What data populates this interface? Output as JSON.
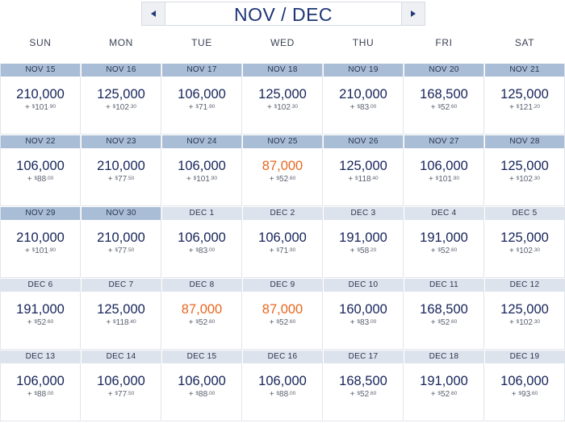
{
  "header": {
    "title": "NOV / DEC",
    "prev_icon": "triangle-left-icon",
    "next_icon": "triangle-right-icon"
  },
  "colors": {
    "primary": "#1d3574",
    "low_fare": "#e8661e",
    "nov_bar": "#a9bed6",
    "dec_bar": "#dde3ec"
  },
  "days_of_week": [
    "SUN",
    "MON",
    "TUE",
    "WED",
    "THU",
    "FRI",
    "SAT"
  ],
  "weeks": [
    [
      {
        "date": "NOV 15",
        "month": "nov",
        "miles": "210,000",
        "low": false,
        "plus": "+",
        "cur": "$",
        "dollars": "101",
        "cents": ".90"
      },
      {
        "date": "NOV 16",
        "month": "nov",
        "miles": "125,000",
        "low": false,
        "plus": "+",
        "cur": "$",
        "dollars": "102",
        "cents": ".30"
      },
      {
        "date": "NOV 17",
        "month": "nov",
        "miles": "106,000",
        "low": false,
        "plus": "+",
        "cur": "$",
        "dollars": "71",
        "cents": ".90"
      },
      {
        "date": "NOV 18",
        "month": "nov",
        "miles": "125,000",
        "low": false,
        "plus": "+",
        "cur": "$",
        "dollars": "102",
        "cents": ".30"
      },
      {
        "date": "NOV 19",
        "month": "nov",
        "miles": "210,000",
        "low": false,
        "plus": "+",
        "cur": "$",
        "dollars": "83",
        "cents": ".00"
      },
      {
        "date": "NOV 20",
        "month": "nov",
        "miles": "168,500",
        "low": false,
        "plus": "+",
        "cur": "$",
        "dollars": "52",
        "cents": ".60"
      },
      {
        "date": "NOV 21",
        "month": "nov",
        "miles": "125,000",
        "low": false,
        "plus": "+",
        "cur": "$",
        "dollars": "121",
        "cents": ".20"
      }
    ],
    [
      {
        "date": "NOV 22",
        "month": "nov",
        "miles": "106,000",
        "low": false,
        "plus": "+",
        "cur": "$",
        "dollars": "88",
        "cents": ".00"
      },
      {
        "date": "NOV 23",
        "month": "nov",
        "miles": "210,000",
        "low": false,
        "plus": "+",
        "cur": "$",
        "dollars": "77",
        "cents": ".50"
      },
      {
        "date": "NOV 24",
        "month": "nov",
        "miles": "106,000",
        "low": false,
        "plus": "+",
        "cur": "$",
        "dollars": "101",
        "cents": ".90"
      },
      {
        "date": "NOV 25",
        "month": "nov",
        "miles": "87,000",
        "low": true,
        "plus": "+",
        "cur": "$",
        "dollars": "52",
        "cents": ".60"
      },
      {
        "date": "NOV 26",
        "month": "nov",
        "miles": "125,000",
        "low": false,
        "plus": "+",
        "cur": "$",
        "dollars": "118",
        "cents": ".40"
      },
      {
        "date": "NOV 27",
        "month": "nov",
        "miles": "106,000",
        "low": false,
        "plus": "+",
        "cur": "$",
        "dollars": "101",
        "cents": ".90"
      },
      {
        "date": "NOV 28",
        "month": "nov",
        "miles": "125,000",
        "low": false,
        "plus": "+",
        "cur": "$",
        "dollars": "102",
        "cents": ".30"
      }
    ],
    [
      {
        "date": "NOV 29",
        "month": "nov",
        "miles": "210,000",
        "low": false,
        "plus": "+",
        "cur": "$",
        "dollars": "101",
        "cents": ".90"
      },
      {
        "date": "NOV 30",
        "month": "nov",
        "miles": "210,000",
        "low": false,
        "plus": "+",
        "cur": "$",
        "dollars": "77",
        "cents": ".50"
      },
      {
        "date": "DEC 1",
        "month": "dec",
        "miles": "106,000",
        "low": false,
        "plus": "+",
        "cur": "$",
        "dollars": "83",
        "cents": ".00"
      },
      {
        "date": "DEC 2",
        "month": "dec",
        "miles": "106,000",
        "low": false,
        "plus": "+",
        "cur": "$",
        "dollars": "71",
        "cents": ".90"
      },
      {
        "date": "DEC 3",
        "month": "dec",
        "miles": "191,000",
        "low": false,
        "plus": "+",
        "cur": "$",
        "dollars": "58",
        "cents": ".20"
      },
      {
        "date": "DEC 4",
        "month": "dec",
        "miles": "191,000",
        "low": false,
        "plus": "+",
        "cur": "$",
        "dollars": "52",
        "cents": ".60"
      },
      {
        "date": "DEC 5",
        "month": "dec",
        "miles": "125,000",
        "low": false,
        "plus": "+",
        "cur": "$",
        "dollars": "102",
        "cents": ".30"
      }
    ],
    [
      {
        "date": "DEC 6",
        "month": "dec",
        "miles": "191,000",
        "low": false,
        "plus": "+",
        "cur": "$",
        "dollars": "52",
        "cents": ".60"
      },
      {
        "date": "DEC 7",
        "month": "dec",
        "miles": "125,000",
        "low": false,
        "plus": "+",
        "cur": "$",
        "dollars": "118",
        "cents": ".40"
      },
      {
        "date": "DEC 8",
        "month": "dec",
        "miles": "87,000",
        "low": true,
        "plus": "+",
        "cur": "$",
        "dollars": "52",
        "cents": ".60"
      },
      {
        "date": "DEC 9",
        "month": "dec",
        "miles": "87,000",
        "low": true,
        "plus": "+",
        "cur": "$",
        "dollars": "52",
        "cents": ".60"
      },
      {
        "date": "DEC 10",
        "month": "dec",
        "miles": "160,000",
        "low": false,
        "plus": "+",
        "cur": "$",
        "dollars": "83",
        "cents": ".00"
      },
      {
        "date": "DEC 11",
        "month": "dec",
        "miles": "168,500",
        "low": false,
        "plus": "+",
        "cur": "$",
        "dollars": "52",
        "cents": ".60"
      },
      {
        "date": "DEC 12",
        "month": "dec",
        "miles": "125,000",
        "low": false,
        "plus": "+",
        "cur": "$",
        "dollars": "102",
        "cents": ".30"
      }
    ],
    [
      {
        "date": "DEC 13",
        "month": "dec",
        "miles": "106,000",
        "low": false,
        "plus": "+",
        "cur": "$",
        "dollars": "88",
        "cents": ".00"
      },
      {
        "date": "DEC 14",
        "month": "dec",
        "miles": "106,000",
        "low": false,
        "plus": "+",
        "cur": "$",
        "dollars": "77",
        "cents": ".50"
      },
      {
        "date": "DEC 15",
        "month": "dec",
        "miles": "106,000",
        "low": false,
        "plus": "+",
        "cur": "$",
        "dollars": "88",
        "cents": ".00"
      },
      {
        "date": "DEC 16",
        "month": "dec",
        "miles": "106,000",
        "low": false,
        "plus": "+",
        "cur": "$",
        "dollars": "88",
        "cents": ".00"
      },
      {
        "date": "DEC 17",
        "month": "dec",
        "miles": "168,500",
        "low": false,
        "plus": "+",
        "cur": "$",
        "dollars": "52",
        "cents": ".60"
      },
      {
        "date": "DEC 18",
        "month": "dec",
        "miles": "191,000",
        "low": false,
        "plus": "+",
        "cur": "$",
        "dollars": "52",
        "cents": ".60"
      },
      {
        "date": "DEC 19",
        "month": "dec",
        "miles": "106,000",
        "low": false,
        "plus": "+",
        "cur": "$",
        "dollars": "93",
        "cents": ".60"
      }
    ]
  ]
}
